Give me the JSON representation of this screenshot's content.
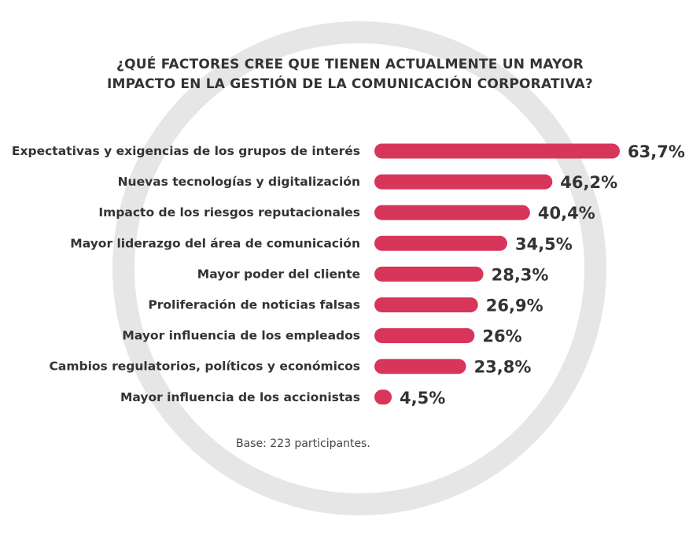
{
  "colors": {
    "bar": "#d8355a",
    "ring": "#e6e6e6",
    "text": "#333333"
  },
  "title_lines": [
    "¿QUÉ FACTORES CREE QUE TIENEN ACTUALMENTE UN MAYOR",
    "IMPACTO EN LA GESTIÓN DE LA COMUNICACIÓN CORPORATIVA?"
  ],
  "footnote": "Base: 223 participantes.",
  "chart_data": {
    "type": "bar",
    "orientation": "horizontal",
    "title": "¿QUÉ FACTORES CREE QUE TIENEN ACTUALMENTE UN MAYOR IMPACTO EN LA GESTIÓN DE LA COMUNICACIÓN CORPORATIVA?",
    "xlabel": "",
    "ylabel": "",
    "xlim": [
      0,
      63.7
    ],
    "grid": false,
    "categories": [
      "Expectativas y exigencias de los grupos de interés",
      "Nuevas tecnologías y digitalización",
      "Impacto de los riesgos reputacionales",
      "Mayor liderazgo del área de comunicación",
      "Mayor poder del cliente",
      "Proliferación de noticias falsas",
      "Mayor influencia de los empleados",
      "Cambios regulatorios, políticos y económicos",
      "Mayor influencia de los accionistas"
    ],
    "values": [
      63.7,
      46.2,
      40.4,
      34.5,
      28.3,
      26.9,
      26,
      23.8,
      4.5
    ],
    "value_labels": [
      "63,7%",
      "46,2%",
      "40,4%",
      "34,5%",
      "28,3%",
      "26,9%",
      "26%",
      "23,8%",
      "4,5%"
    ]
  }
}
